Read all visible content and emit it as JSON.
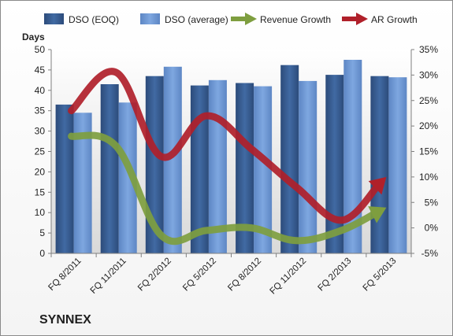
{
  "chart_data": {
    "type": "bar+line",
    "categories": [
      "FQ 8/2011",
      "FQ 11/2011",
      "FQ 2/2012",
      "FQ 5/2012",
      "FQ 8/2012",
      "FQ 11/2012",
      "FQ 2/2013",
      "FQ 5/2013"
    ],
    "left_axis": {
      "label": "Days",
      "ylim": [
        0,
        50
      ],
      "ticks": [
        0,
        5,
        10,
        15,
        20,
        25,
        30,
        35,
        40,
        45,
        50
      ]
    },
    "right_axis": {
      "ylim": [
        -5,
        35
      ],
      "ticks": [
        "-5%",
        "0%",
        "5%",
        "10%",
        "15%",
        "20%",
        "25%",
        "30%",
        "35%"
      ]
    },
    "bar_series": [
      {
        "name": "DSO (EOQ)",
        "color": "#3a5f94",
        "values": [
          36.5,
          41.5,
          43.5,
          41.2,
          41.8,
          46.2,
          43.8,
          43.5
        ]
      },
      {
        "name": "DSO (average)",
        "color": "#6e97d4",
        "values": [
          34.5,
          37,
          45.8,
          42.5,
          41,
          42.3,
          47.5,
          43.2
        ]
      }
    ],
    "line_series": [
      {
        "name": "Revenue Growth",
        "color": "#7e9e3f",
        "values": [
          18,
          16,
          -1.5,
          -0.5,
          0,
          -2.5,
          -0.5,
          4
        ],
        "axis": "right"
      },
      {
        "name": "AR Growth",
        "color": "#b0202a",
        "values": [
          23,
          30.5,
          14,
          22,
          15.5,
          8,
          1.5,
          10
        ],
        "axis": "right"
      }
    ],
    "legend_position": "top",
    "grid": false
  },
  "company": "SYNNEX"
}
